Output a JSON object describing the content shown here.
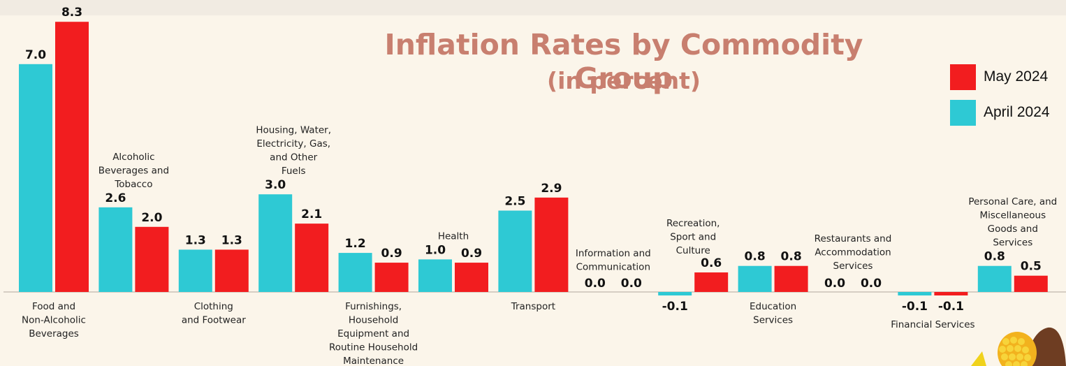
{
  "chart_data": {
    "type": "bar",
    "title": "Inflation Rates by Commodity Group",
    "subtitle": "(in percent)",
    "categories": [
      "Food and Non-Alcoholic Beverages",
      "Alcoholic Beverages and Tobacco",
      "Clothing and Footwear",
      "Housing, Water, Electricity, Gas, and Other Fuels",
      "Furnishings, Household Equipment and Routine Household Maintenance",
      "Health",
      "Transport",
      "Information and Communication",
      "Recreation, Sport and Culture",
      "Education Services",
      "Restaurants and Accommodation Services",
      "Financial Services",
      "Personal Care, and Miscellaneous Goods and Services"
    ],
    "category_label_lines": [
      [
        "Food and",
        "Non-Alcoholic",
        "Beverages"
      ],
      [
        "Alcoholic",
        "Beverages and",
        "Tobacco"
      ],
      [
        "Clothing",
        "and Footwear"
      ],
      [
        "Housing, Water,",
        "Electricity, Gas,",
        "and Other",
        "Fuels"
      ],
      [
        "Furnishings,",
        "Household",
        "Equipment and",
        "Routine Household",
        "Maintenance"
      ],
      [
        "Health"
      ],
      [
        "Transport"
      ],
      [
        "Information and",
        "Communication"
      ],
      [
        "Recreation,",
        "Sport and",
        "Culture"
      ],
      [
        "Education",
        "Services"
      ],
      [
        "Restaurants and",
        "Accommodation",
        "Services"
      ],
      [
        "Financial Services"
      ],
      [
        "Personal Care, and",
        "Miscellaneous",
        "Goods and",
        "Services"
      ]
    ],
    "category_label_placement": [
      "below",
      "above",
      "below",
      "above",
      "below",
      "above",
      "below",
      "above",
      "above",
      "below",
      "above",
      "below",
      "above"
    ],
    "series": [
      {
        "name": "April 2024",
        "color": "#2ec9d4",
        "values": [
          7.0,
          2.6,
          1.3,
          3.0,
          1.2,
          1.0,
          2.5,
          0.0,
          -0.1,
          0.8,
          0.0,
          -0.1,
          0.8
        ]
      },
      {
        "name": "May 2024",
        "color": "#f21d1f",
        "values": [
          8.3,
          2.0,
          1.3,
          2.1,
          0.9,
          0.9,
          2.9,
          0.0,
          0.6,
          0.8,
          0.0,
          -0.1,
          0.5
        ]
      }
    ],
    "value_labels": [
      [
        "7.0",
        "2.6",
        "1.3",
        "3.0",
        "1.2",
        "1.0",
        "2.5",
        "0.0",
        "-0.1",
        "0.8",
        "0.0",
        "-0.1",
        "0.8"
      ],
      [
        "8.3",
        "2.0",
        "1.3",
        "2.1",
        "0.9",
        "0.9",
        "2.9",
        "0.0",
        "0.6",
        "0.8",
        "0.0",
        "-0.1",
        "0.5"
      ]
    ],
    "legend": {
      "position": "top-right",
      "order": [
        "May 2024",
        "April 2024"
      ]
    },
    "grid": false,
    "xlabel": "",
    "ylabel": ""
  }
}
